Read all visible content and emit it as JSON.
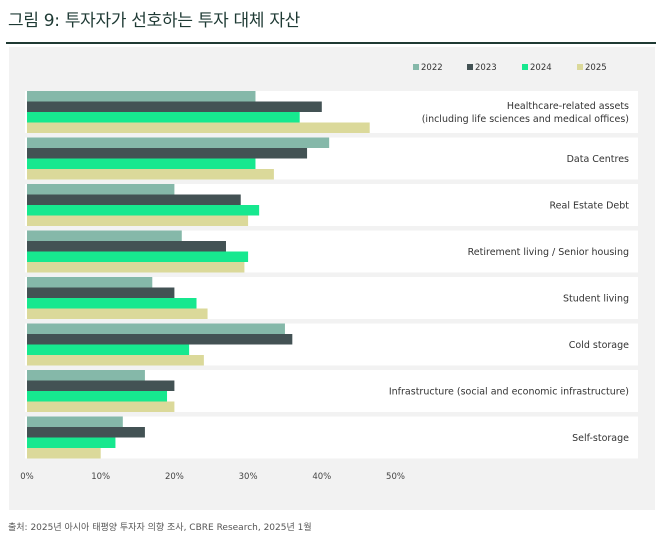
{
  "title": "그림 9: 투자자가 선호하는 투자 대체 자산",
  "source": "출처: 2025년 아시아 태평양 투자자 의향 조사, CBRE Research, 2025년 1월",
  "colors": {
    "2022": "#85b8a9",
    "2023": "#435254",
    "2024": "#17e88f",
    "2025": "#dbd99a",
    "panel": "#f2f2f2",
    "band": "#ffffff"
  },
  "chart_data": {
    "type": "bar",
    "orientation": "horizontal",
    "legend_position": "top-right",
    "categories": [
      [
        "Healthcare-related assets",
        "(including life sciences and medical offices)"
      ],
      [
        "Data Centres"
      ],
      [
        "Real Estate Debt"
      ],
      [
        "Retirement living / Senior housing"
      ],
      [
        "Student living"
      ],
      [
        "Cold storage"
      ],
      [
        "Infrastructure (social and economic infrastructure)"
      ],
      [
        "Self-storage"
      ]
    ],
    "series": [
      {
        "name": "2022",
        "values": [
          31,
          41,
          20,
          21,
          17,
          35,
          16,
          13
        ]
      },
      {
        "name": "2023",
        "values": [
          40,
          38,
          29,
          27,
          20,
          36,
          20,
          16
        ]
      },
      {
        "name": "2024",
        "values": [
          37,
          31,
          31.5,
          30,
          23,
          22,
          19,
          12
        ]
      },
      {
        "name": "2025",
        "values": [
          46.5,
          33.5,
          30,
          29.5,
          24.5,
          24,
          20,
          10
        ]
      }
    ],
    "x_ticks": [
      "0%",
      "10%",
      "20%",
      "30%",
      "40%",
      "50%"
    ],
    "xlim": [
      0,
      50
    ],
    "grid": false
  }
}
